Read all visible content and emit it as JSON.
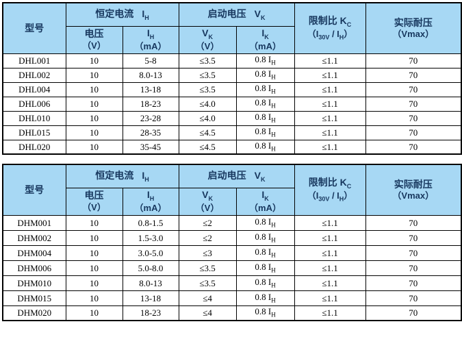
{
  "colors": {
    "page_bg": "#FFFFFF",
    "header_bg": "#A7D8F4",
    "header_text": "#17375E",
    "border": "#000000",
    "cell_text": "#000000"
  },
  "tables": [
    {
      "series": "DHL",
      "header": {
        "model": "型号",
        "constant_current": {
          "label": "恒定电流",
          "sym": "I",
          "sub": "H"
        },
        "startup_voltage": {
          "label": "启动电压",
          "sym": "V",
          "sub": "K"
        },
        "limit_ratio": {
          "label": "限制比",
          "sym": "K",
          "sub": "C",
          "p1": "（I",
          "s1": "30V",
          "p2": " / I",
          "s2": "H",
          "p3": "）"
        },
        "withstand": {
          "label": "实际耐压",
          "unit": "（Vmax）"
        },
        "voltage": {
          "label": "电压",
          "unit": "（V）"
        },
        "ih": {
          "sym": "I",
          "sub": "H",
          "unit": "（mA）"
        },
        "vk": {
          "sym": "V",
          "sub": "K",
          "unit": "（V）"
        },
        "ik": {
          "sym": "I",
          "sub": "K",
          "unit": "（mA）"
        }
      },
      "rows": [
        {
          "model": "DHL001",
          "voltage": "10",
          "ih": "5-8",
          "vk": "≤3.5",
          "ik": {
            "text": "0.8 I",
            "sub": "H"
          },
          "kc": "≤1.1",
          "vmax": "70"
        },
        {
          "model": "DHL002",
          "voltage": "10",
          "ih": "8.0-13",
          "vk": "≤3.5",
          "ik": {
            "text": "0.8 I",
            "sub": "H"
          },
          "kc": "≤1.1",
          "vmax": "70"
        },
        {
          "model": "DHL004",
          "voltage": "10",
          "ih": "13-18",
          "vk": "≤3.5",
          "ik": {
            "text": "0.8 I",
            "sub": "H"
          },
          "kc": "≤1.1",
          "vmax": "70"
        },
        {
          "model": "DHL006",
          "voltage": "10",
          "ih": "18-23",
          "vk": "≤4.0",
          "ik": {
            "text": "0.8 I",
            "sub": "H"
          },
          "kc": "≤1.1",
          "vmax": "70"
        },
        {
          "model": "DHL010",
          "voltage": "10",
          "ih": "23-28",
          "vk": "≤4.0",
          "ik": {
            "text": "0.8 I",
            "sub": "H"
          },
          "kc": "≤1.1",
          "vmax": "70"
        },
        {
          "model": "DHL015",
          "voltage": "10",
          "ih": "28-35",
          "vk": "≤4.5",
          "ik": {
            "text": "0.8 I",
            "sub": "H"
          },
          "kc": "≤1.1",
          "vmax": "70"
        },
        {
          "model": "DHL020",
          "voltage": "10",
          "ih": "35-45",
          "vk": "≤4.5",
          "ik": {
            "text": "0.8 I",
            "sub": "H"
          },
          "kc": "≤1.1",
          "vmax": "70"
        }
      ]
    },
    {
      "series": "DHM",
      "header": {
        "model": "型号",
        "constant_current": {
          "label": "恒定电流",
          "sym": "I",
          "sub": "H"
        },
        "startup_voltage": {
          "label": "启动电压",
          "sym": "V",
          "sub": "K"
        },
        "limit_ratio": {
          "label": "限制比",
          "sym": "K",
          "sub": "C",
          "p1": "（I",
          "s1": "30V",
          "p2": " / I",
          "s2": "H",
          "p3": "）"
        },
        "withstand": {
          "label": "实际耐压",
          "unit": "（Vmax）"
        },
        "voltage": {
          "label": "电压",
          "unit": "（V）"
        },
        "ih": {
          "sym": "I",
          "sub": "H",
          "unit": "（mA）"
        },
        "vk": {
          "sym": "V",
          "sub": "K",
          "unit": "（V）"
        },
        "ik": {
          "sym": "I",
          "sub": "K",
          "unit": "（mA）"
        }
      },
      "rows": [
        {
          "model": "DHM001",
          "voltage": "10",
          "ih": "0.8-1.5",
          "vk": "≤2",
          "ik": {
            "text": "0.8 I",
            "sub": "H"
          },
          "kc": "≤1.1",
          "vmax": "70"
        },
        {
          "model": "DHM002",
          "voltage": "10",
          "ih": "1.5-3.0",
          "vk": "≤2",
          "ik": {
            "text": "0.8 I",
            "sub": "H"
          },
          "kc": "≤1.1",
          "vmax": "70"
        },
        {
          "model": "DHM004",
          "voltage": "10",
          "ih": "3.0-5.0",
          "vk": "≤3",
          "ik": {
            "text": "0.8 I",
            "sub": "H"
          },
          "kc": "≤1.1",
          "vmax": "70"
        },
        {
          "model": "DHM006",
          "voltage": "10",
          "ih": "5.0-8.0",
          "vk": "≤3.5",
          "ik": {
            "text": "0.8 I",
            "sub": "H"
          },
          "kc": "≤1.1",
          "vmax": "70"
        },
        {
          "model": "DHM010",
          "voltage": "10",
          "ih": "8.0-13",
          "vk": "≤3.5",
          "ik": {
            "text": "0.8 I",
            "sub": "H"
          },
          "kc": "≤1.1",
          "vmax": "70"
        },
        {
          "model": "DHM015",
          "voltage": "10",
          "ih": "13-18",
          "vk": "≤4",
          "ik": {
            "text": "0.8 I",
            "sub": "H"
          },
          "kc": "≤1.1",
          "vmax": "70"
        },
        {
          "model": "DHM020",
          "voltage": "10",
          "ih": "18-23",
          "vk": "≤4",
          "ik": {
            "text": "0.8 I",
            "sub": "H"
          },
          "kc": "≤1.1",
          "vmax": "70"
        }
      ]
    }
  ]
}
